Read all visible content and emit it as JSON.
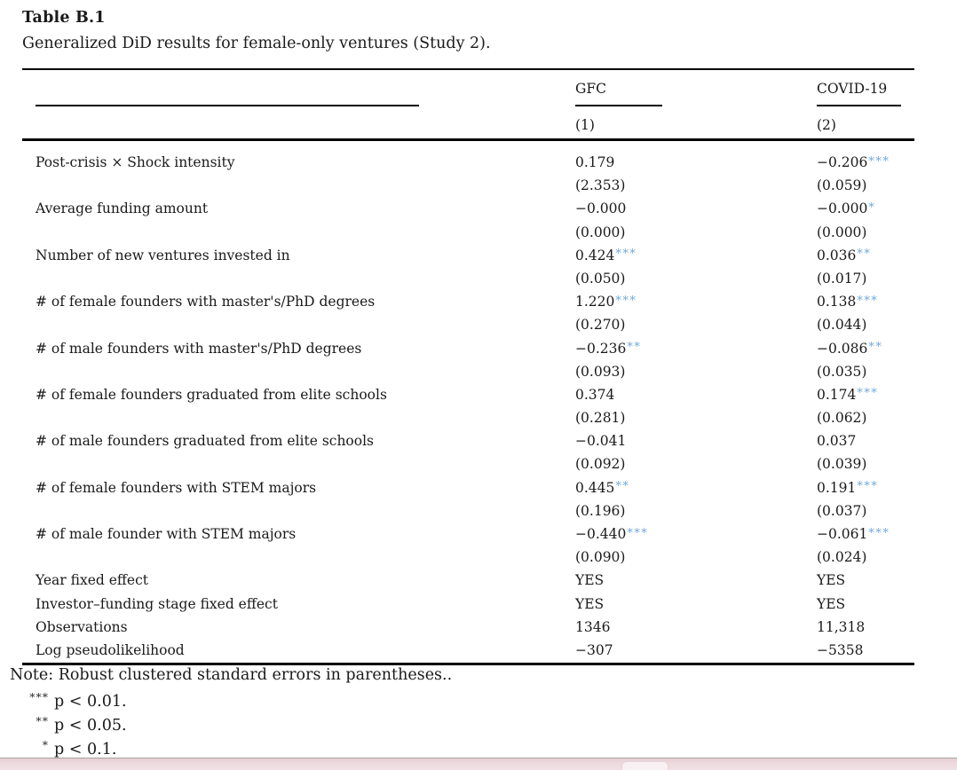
{
  "title": "Table B.1",
  "caption": "Generalized DiD results for female-only ventures (Study 2).",
  "header": {
    "col1_group": "GFC",
    "col2_group": "COVID-19",
    "col1_number": "(1)",
    "col2_number": "(2)"
  },
  "table": {
    "rows": [
      {
        "label": "Post-crisis × Shock intensity",
        "c1": "0.179",
        "s1": "",
        "c2": "−0.206",
        "s2": "***"
      },
      {
        "label": "",
        "c1": "(2.353)",
        "s1": "",
        "c2": "(0.059)",
        "s2": ""
      },
      {
        "label": "Average funding amount",
        "c1": "−0.000",
        "s1": "",
        "c2": "−0.000",
        "s2": "*"
      },
      {
        "label": "",
        "c1": "(0.000)",
        "s1": "",
        "c2": "(0.000)",
        "s2": ""
      },
      {
        "label": "Number of new ventures invested in",
        "c1": "0.424",
        "s1": "***",
        "c2": "0.036",
        "s2": "**"
      },
      {
        "label": "",
        "c1": "(0.050)",
        "s1": "",
        "c2": "(0.017)",
        "s2": ""
      },
      {
        "label": "# of female founders with master's/PhD degrees",
        "c1": "1.220",
        "s1": "***",
        "c2": "0.138",
        "s2": "***"
      },
      {
        "label": "",
        "c1": "(0.270)",
        "s1": "",
        "c2": "(0.044)",
        "s2": ""
      },
      {
        "label": "# of male founders with master's/PhD degrees",
        "c1": "−0.236",
        "s1": "**",
        "c2": "−0.086",
        "s2": "**"
      },
      {
        "label": "",
        "c1": "(0.093)",
        "s1": "",
        "c2": "(0.035)",
        "s2": ""
      },
      {
        "label": "# of female founders graduated from elite schools",
        "c1": "0.374",
        "s1": "",
        "c2": "0.174",
        "s2": "***"
      },
      {
        "label": "",
        "c1": "(0.281)",
        "s1": "",
        "c2": "(0.062)",
        "s2": ""
      },
      {
        "label": "# of male founders graduated from elite schools",
        "c1": "−0.041",
        "s1": "",
        "c2": "0.037",
        "s2": ""
      },
      {
        "label": "",
        "c1": "(0.092)",
        "s1": "",
        "c2": "(0.039)",
        "s2": ""
      },
      {
        "label": "# of female founders with STEM majors",
        "c1": "0.445",
        "s1": "**",
        "c2": "0.191",
        "s2": "***"
      },
      {
        "label": "",
        "c1": "(0.196)",
        "s1": "",
        "c2": "(0.037)",
        "s2": ""
      },
      {
        "label": "# of male founder with STEM majors",
        "c1": "−0.440",
        "s1": "***",
        "c2": "−0.061",
        "s2": "***"
      },
      {
        "label": "",
        "c1": "(0.090)",
        "s1": "",
        "c2": "(0.024)",
        "s2": ""
      },
      {
        "label": "Year fixed effect",
        "c1": "YES",
        "s1": "",
        "c2": "YES",
        "s2": ""
      },
      {
        "label": "Investor–funding stage fixed effect",
        "c1": "YES",
        "s1": "",
        "c2": "YES",
        "s2": ""
      },
      {
        "label": "Observations",
        "c1": "1346",
        "s1": "",
        "c2": "11,318",
        "s2": ""
      },
      {
        "label": "Log pseudolikelihood",
        "c1": "−307",
        "s1": "",
        "c2": "−5358",
        "s2": ""
      }
    ]
  },
  "note": "Note: Robust clustered standard errors in parentheses..",
  "footnotes": [
    {
      "stars": "***",
      "text": "p < 0.01."
    },
    {
      "stars": "**",
      "text": "p < 0.05."
    },
    {
      "stars": "*",
      "text": "p < 0.1."
    }
  ],
  "colors": {
    "significance_star_blue": "#74aadc",
    "text": "#1a1a1a",
    "rule": "#000000",
    "bottom_bar_pink": "#ecdadd",
    "bottom_bar_border": "#a9a1a3",
    "bottom_bar_thumb": "#f8f0f2"
  }
}
